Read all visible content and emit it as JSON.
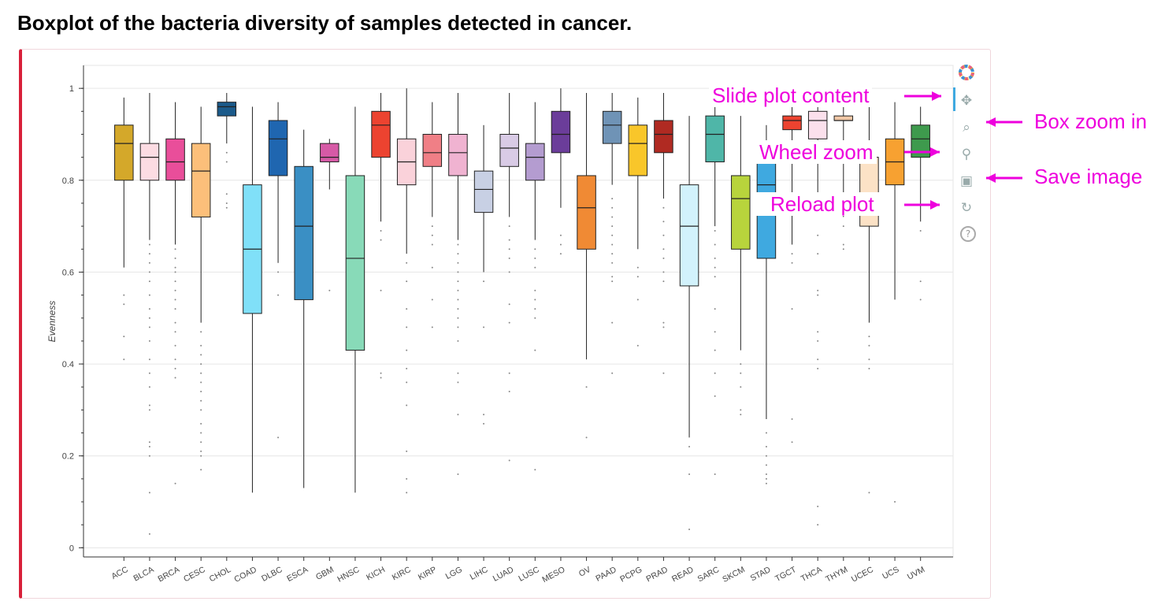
{
  "title": "Boxplot of the bacteria diversity of samples detected in cancer.",
  "toolbar": {
    "items": [
      {
        "name": "bokeh-logo-icon",
        "glyph": "✿"
      },
      {
        "name": "pan-icon",
        "glyph": "✥"
      },
      {
        "name": "box-zoom-icon",
        "glyph": "⌕"
      },
      {
        "name": "wheel-zoom-icon",
        "glyph": "⚲"
      },
      {
        "name": "save-icon",
        "glyph": "▣"
      },
      {
        "name": "reset-icon",
        "glyph": "↻"
      },
      {
        "name": "help-icon",
        "glyph": "?"
      }
    ]
  },
  "annotations": {
    "slide": "Slide plot content",
    "box_zoom": "Box zoom in",
    "wheel_zoom": "Wheel zoom",
    "save": "Save image",
    "reload": "Reload plot"
  },
  "annotation_color": "#ee00dd",
  "chart_data": {
    "type": "boxplot",
    "title": "",
    "xlabel": "",
    "ylabel": "Evenness",
    "ylim": [
      -0.02,
      1.05
    ],
    "yticks": [
      0,
      0.2,
      0.4,
      0.6,
      0.8,
      1
    ],
    "ytick_labels": [
      "0",
      "0.2",
      "0.4",
      "0.6",
      "0.8",
      "1"
    ],
    "grid": true,
    "categories": [
      "ACC",
      "BLCA",
      "BRCA",
      "CESC",
      "CHOL",
      "COAD",
      "DLBC",
      "ESCA",
      "GBM",
      "HNSC",
      "KICH",
      "KIRC",
      "KIRP",
      "LGG",
      "LIHC",
      "LUAD",
      "LUSC",
      "MESO",
      "OV",
      "PAAD",
      "PCPG",
      "PRAD",
      "READ",
      "SARC",
      "SKCM",
      "STAD",
      "TGCT",
      "THCA",
      "THYM",
      "UCEC",
      "UCS",
      "UVM"
    ],
    "boxes": [
      {
        "cat": "ACC",
        "lo": 0.61,
        "q1": 0.8,
        "med": 0.88,
        "q3": 0.92,
        "hi": 0.98,
        "color": "#d4a82a",
        "out": [
          0.55,
          0.53,
          0.46,
          0.41
        ]
      },
      {
        "cat": "BLCA",
        "lo": 0.67,
        "q1": 0.8,
        "med": 0.85,
        "q3": 0.88,
        "hi": 0.99,
        "color": "#fcdce3",
        "out": [
          0.66,
          0.64,
          0.62,
          0.6,
          0.58,
          0.55,
          0.52,
          0.5,
          0.48,
          0.45,
          0.41,
          0.38,
          0.35,
          0.31,
          0.3,
          0.23,
          0.22,
          0.2,
          0.12,
          0.03
        ]
      },
      {
        "cat": "BRCA",
        "lo": 0.66,
        "q1": 0.8,
        "med": 0.84,
        "q3": 0.89,
        "hi": 0.97,
        "color": "#e94e9a",
        "out": [
          0.65,
          0.63,
          0.61,
          0.6,
          0.58,
          0.56,
          0.54,
          0.52,
          0.49,
          0.47,
          0.44,
          0.41,
          0.39,
          0.37,
          0.14
        ]
      },
      {
        "cat": "CESC",
        "lo": 0.49,
        "q1": 0.72,
        "med": 0.82,
        "q3": 0.88,
        "hi": 0.96,
        "color": "#fcbf7a",
        "out": [
          0.47,
          0.44,
          0.42,
          0.4,
          0.38,
          0.36,
          0.34,
          0.32,
          0.3,
          0.27,
          0.25,
          0.23,
          0.21,
          0.2,
          0.17
        ]
      },
      {
        "cat": "CHOL",
        "lo": 0.88,
        "q1": 0.94,
        "med": 0.96,
        "q3": 0.97,
        "hi": 0.99,
        "color": "#1b5a8a",
        "out": [
          0.86,
          0.84,
          0.77,
          0.75,
          0.74
        ]
      },
      {
        "cat": "COAD",
        "lo": 0.12,
        "q1": 0.51,
        "med": 0.65,
        "q3": 0.79,
        "hi": 0.96,
        "color": "#80e0f8",
        "out": []
      },
      {
        "cat": "DLBC",
        "lo": 0.62,
        "q1": 0.81,
        "med": 0.89,
        "q3": 0.93,
        "hi": 0.97,
        "color": "#1f66b0",
        "out": [
          0.6,
          0.55,
          0.24
        ]
      },
      {
        "cat": "ESCA",
        "lo": 0.13,
        "q1": 0.54,
        "med": 0.7,
        "q3": 0.83,
        "hi": 0.91,
        "color": "#3a8fc4",
        "out": []
      },
      {
        "cat": "GBM",
        "lo": 0.78,
        "q1": 0.84,
        "med": 0.85,
        "q3": 0.88,
        "hi": 0.89,
        "color": "#d65aa6",
        "out": [
          0.56
        ]
      },
      {
        "cat": "HNSC",
        "lo": 0.12,
        "q1": 0.43,
        "med": 0.63,
        "q3": 0.81,
        "hi": 0.96,
        "color": "#88dab8",
        "out": []
      },
      {
        "cat": "KICH",
        "lo": 0.71,
        "q1": 0.85,
        "med": 0.92,
        "q3": 0.95,
        "hi": 0.99,
        "color": "#ec4330",
        "out": [
          0.69,
          0.67,
          0.56,
          0.38,
          0.37
        ]
      },
      {
        "cat": "KIRC",
        "lo": 0.64,
        "q1": 0.79,
        "med": 0.84,
        "q3": 0.89,
        "hi": 1.0,
        "color": "#fad2da",
        "out": [
          0.62,
          0.58,
          0.52,
          0.48,
          0.43,
          0.39,
          0.36,
          0.31,
          0.21,
          0.15,
          0.12
        ]
      },
      {
        "cat": "KIRP",
        "lo": 0.72,
        "q1": 0.83,
        "med": 0.86,
        "q3": 0.9,
        "hi": 0.97,
        "color": "#f07f86",
        "out": [
          0.7,
          0.68,
          0.66,
          0.61,
          0.54,
          0.48
        ]
      },
      {
        "cat": "LGG",
        "lo": 0.67,
        "q1": 0.81,
        "med": 0.86,
        "q3": 0.9,
        "hi": 0.99,
        "color": "#f0b3d1",
        "out": [
          0.66,
          0.64,
          0.62,
          0.6,
          0.58,
          0.56,
          0.54,
          0.52,
          0.5,
          0.48,
          0.45,
          0.38,
          0.36,
          0.29,
          0.16
        ]
      },
      {
        "cat": "LIHC",
        "lo": 0.6,
        "q1": 0.73,
        "med": 0.78,
        "q3": 0.82,
        "hi": 0.92,
        "color": "#c8d0e4",
        "out": [
          0.58,
          0.48,
          0.29,
          0.27
        ]
      },
      {
        "cat": "LUAD",
        "lo": 0.72,
        "q1": 0.83,
        "med": 0.87,
        "q3": 0.9,
        "hi": 0.99,
        "color": "#d9cbe6",
        "out": [
          0.7,
          0.67,
          0.65,
          0.63,
          0.6,
          0.53,
          0.49,
          0.38,
          0.34,
          0.19
        ]
      },
      {
        "cat": "LUSC",
        "lo": 0.67,
        "q1": 0.8,
        "med": 0.85,
        "q3": 0.88,
        "hi": 0.97,
        "color": "#b49cd0",
        "out": [
          0.65,
          0.63,
          0.61,
          0.56,
          0.54,
          0.52,
          0.5,
          0.43,
          0.17
        ]
      },
      {
        "cat": "MESO",
        "lo": 0.74,
        "q1": 0.86,
        "med": 0.9,
        "q3": 0.95,
        "hi": 1.0,
        "color": "#6b3d9a",
        "out": [
          0.68,
          0.66,
          0.64
        ]
      },
      {
        "cat": "OV",
        "lo": 0.41,
        "q1": 0.65,
        "med": 0.74,
        "q3": 0.81,
        "hi": 0.99,
        "color": "#f08a34",
        "out": [
          0.35,
          0.24
        ]
      },
      {
        "cat": "PAAD",
        "lo": 0.79,
        "q1": 0.88,
        "med": 0.92,
        "q3": 0.95,
        "hi": 0.99,
        "color": "#6f93b6",
        "out": [
          0.76,
          0.74,
          0.72,
          0.7,
          0.68,
          0.66,
          0.64,
          0.62,
          0.59,
          0.58,
          0.49,
          0.38
        ]
      },
      {
        "cat": "PCPG",
        "lo": 0.65,
        "q1": 0.81,
        "med": 0.88,
        "q3": 0.92,
        "hi": 0.98,
        "color": "#f9c62a",
        "out": [
          0.61,
          0.59,
          0.54,
          0.44
        ]
      },
      {
        "cat": "PRAD",
        "lo": 0.76,
        "q1": 0.86,
        "med": 0.9,
        "q3": 0.93,
        "hi": 0.99,
        "color": "#b02a22",
        "out": [
          0.74,
          0.71,
          0.68,
          0.65,
          0.63,
          0.6,
          0.58,
          0.49,
          0.48,
          0.38
        ]
      },
      {
        "cat": "READ",
        "lo": 0.24,
        "q1": 0.57,
        "med": 0.7,
        "q3": 0.79,
        "hi": 0.94,
        "color": "#d2f2fc",
        "out": [
          0.22,
          0.16,
          0.04
        ]
      },
      {
        "cat": "SARC",
        "lo": 0.7,
        "q1": 0.84,
        "med": 0.9,
        "q3": 0.94,
        "hi": 0.98,
        "color": "#4fb6a8",
        "out": [
          0.69,
          0.66,
          0.63,
          0.61,
          0.59,
          0.52,
          0.47,
          0.43,
          0.38,
          0.33,
          0.16
        ]
      },
      {
        "cat": "SKCM",
        "lo": 0.43,
        "q1": 0.65,
        "med": 0.76,
        "q3": 0.81,
        "hi": 0.94,
        "color": "#b8d43c",
        "out": [
          0.4,
          0.38,
          0.35,
          0.3,
          0.29
        ]
      },
      {
        "cat": "STAD",
        "lo": 0.28,
        "q1": 0.63,
        "med": 0.79,
        "q3": 0.86,
        "hi": 0.92,
        "color": "#3fa9e0",
        "out": [
          0.25,
          0.22,
          0.2,
          0.18,
          0.16,
          0.15,
          0.14
        ]
      },
      {
        "cat": "TGCT",
        "lo": 0.66,
        "q1": 0.91,
        "med": 0.93,
        "q3": 0.94,
        "hi": 0.97,
        "color": "#ec4330",
        "out": [
          0.64,
          0.62,
          0.52,
          0.28,
          0.23
        ]
      },
      {
        "cat": "THCA",
        "lo": 0.76,
        "q1": 0.89,
        "med": 0.93,
        "q3": 0.95,
        "hi": 0.99,
        "color": "#fbe0ec",
        "out": [
          0.74,
          0.68,
          0.64,
          0.56,
          0.55,
          0.47,
          0.45,
          0.41,
          0.39,
          0.09,
          0.05
        ]
      },
      {
        "cat": "THYM",
        "lo": 0.72,
        "q1": 0.93,
        "med": 0.93,
        "q3": 0.94,
        "hi": 0.97,
        "color": "#f0c7a6",
        "out": [
          0.7,
          0.66,
          0.65
        ]
      },
      {
        "cat": "UCEC",
        "lo": 0.49,
        "q1": 0.7,
        "med": 0.77,
        "q3": 0.85,
        "hi": 0.98,
        "color": "#fce2c6",
        "out": [
          0.46,
          0.44,
          0.41,
          0.39,
          0.12
        ]
      },
      {
        "cat": "UCS",
        "lo": 0.54,
        "q1": 0.79,
        "med": 0.84,
        "q3": 0.89,
        "hi": 0.97,
        "color": "#f7a131",
        "out": [
          0.1
        ]
      },
      {
        "cat": "UVM",
        "lo": 0.71,
        "q1": 0.85,
        "med": 0.89,
        "q3": 0.92,
        "hi": 0.96,
        "color": "#3e9a4d",
        "out": [
          0.69,
          0.58,
          0.54
        ]
      }
    ]
  }
}
